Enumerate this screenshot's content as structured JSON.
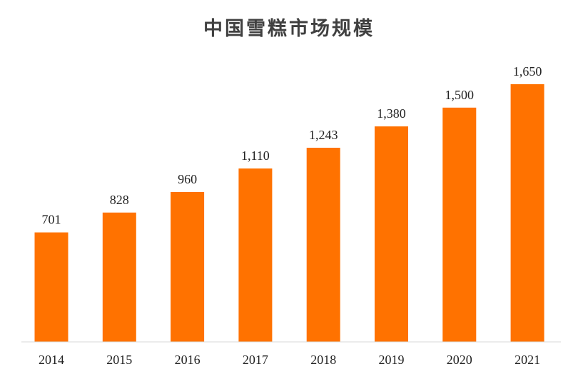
{
  "chart_data": {
    "type": "bar",
    "title": "中国雪糕市场规模",
    "categories": [
      "2014",
      "2015",
      "2016",
      "2017",
      "2018",
      "2019",
      "2020",
      "2021"
    ],
    "values": [
      701,
      828,
      960,
      1110,
      1243,
      1380,
      1500,
      1650
    ],
    "value_labels": [
      "701",
      "828",
      "960",
      "1,110",
      "1,243",
      "1,380",
      "1,500",
      "1,650"
    ],
    "xlabel": "",
    "ylabel": "",
    "ylim": [
      0,
      1700
    ],
    "grid": false,
    "legend": "none",
    "colors": {
      "bar": "#ff7200",
      "axis": "#d9d9d9",
      "text": "#222222",
      "title": "#404040"
    }
  }
}
